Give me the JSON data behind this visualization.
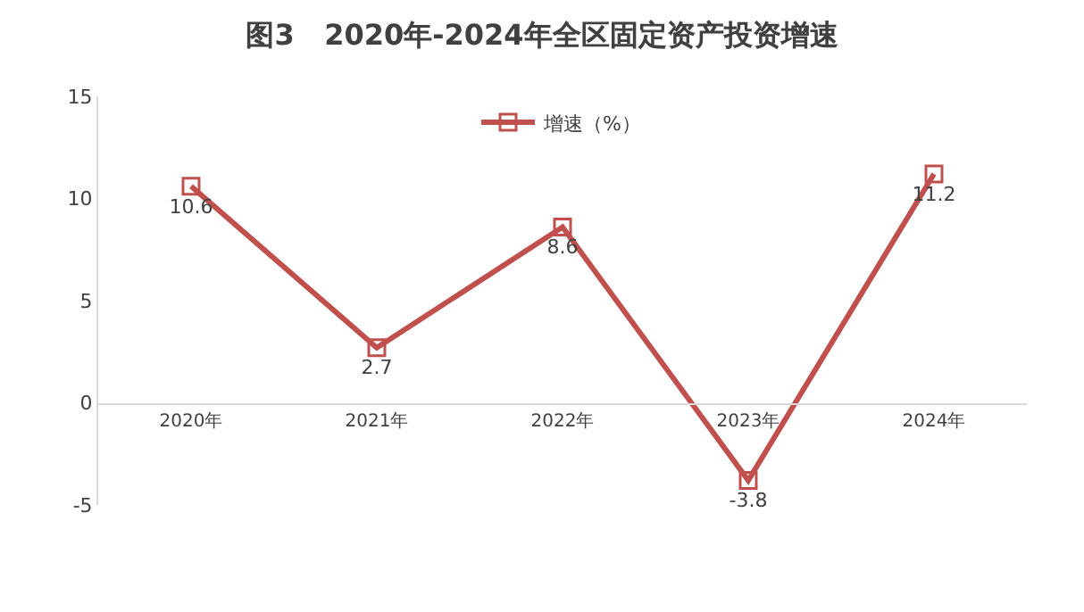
{
  "chart_data": {
    "type": "line",
    "title": "图3   2020年-2024年全区固定资产投资增速",
    "categories": [
      "2020年",
      "2021年",
      "2022年",
      "2023年",
      "2024年"
    ],
    "series": [
      {
        "name": "增速（%）",
        "color": "#c0504d",
        "values": [
          10.6,
          2.7,
          8.6,
          -3.8,
          11.2
        ]
      }
    ],
    "ylim": [
      -5,
      15
    ],
    "yticks": [
      -5,
      0,
      5,
      10,
      15
    ],
    "grid": false,
    "legend": "top",
    "marker": "square",
    "line_style": "solid",
    "data_labels": true
  }
}
